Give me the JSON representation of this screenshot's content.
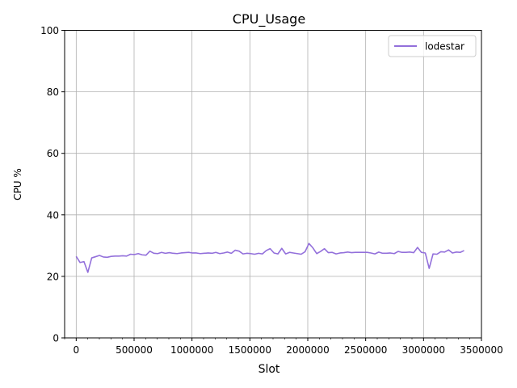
{
  "chart_data": {
    "type": "line",
    "title": "CPU_Usage",
    "xlabel": "Slot",
    "ylabel": "CPU %",
    "xlim": [
      -100000,
      3500000
    ],
    "ylim": [
      0,
      100
    ],
    "xticks": [
      0,
      500000,
      1000000,
      1500000,
      2000000,
      2500000,
      3000000,
      3500000
    ],
    "xtick_labels": [
      "0",
      "500000",
      "1000000",
      "1500000",
      "2000000",
      "2500000",
      "3000000",
      "3500000"
    ],
    "yticks": [
      0,
      20,
      40,
      60,
      80,
      100
    ],
    "ytick_labels": [
      "0",
      "20",
      "40",
      "60",
      "80",
      "100"
    ],
    "grid": true,
    "legend_position": "top-right",
    "series": [
      {
        "name": "lodestar",
        "color": "#9370db",
        "x": [
          0,
          33500,
          67000,
          100500,
          134000,
          167500,
          201000,
          234500,
          268000,
          301500,
          335000,
          368500,
          402000,
          435500,
          469000,
          502500,
          536000,
          569500,
          603000,
          636500,
          670000,
          703500,
          737000,
          770500,
          804000,
          837500,
          871000,
          904500,
          938000,
          971500,
          1005000,
          1038500,
          1072000,
          1105500,
          1139000,
          1172500,
          1206000,
          1239500,
          1273000,
          1306500,
          1340000,
          1373500,
          1407000,
          1440500,
          1474000,
          1507500,
          1541000,
          1574500,
          1608000,
          1641500,
          1675000,
          1708500,
          1742000,
          1775500,
          1809000,
          1842500,
          1876000,
          1909500,
          1943000,
          1976500,
          2010000,
          2043500,
          2077000,
          2110500,
          2144000,
          2177500,
          2211000,
          2244500,
          2278000,
          2311500,
          2345000,
          2378500,
          2412000,
          2445500,
          2479000,
          2512500,
          2546000,
          2579500,
          2613000,
          2646500,
          2680000,
          2713500,
          2747000,
          2780500,
          2814000,
          2847500,
          2881000,
          2914500,
          2948000,
          2981500,
          3015000,
          3048500,
          3082000,
          3115500,
          3149000,
          3182500,
          3216000,
          3249500,
          3283000,
          3316500,
          3350000
        ],
        "y": [
          26.5,
          24.5,
          24.8,
          21.3,
          26.0,
          26.4,
          26.8,
          26.3,
          26.2,
          26.5,
          26.6,
          26.6,
          26.7,
          26.6,
          27.2,
          27.1,
          27.4,
          27.0,
          26.9,
          28.2,
          27.5,
          27.4,
          27.8,
          27.5,
          27.7,
          27.5,
          27.4,
          27.6,
          27.7,
          27.8,
          27.6,
          27.6,
          27.4,
          27.5,
          27.6,
          27.5,
          27.8,
          27.4,
          27.6,
          27.9,
          27.5,
          28.5,
          28.2,
          27.3,
          27.5,
          27.4,
          27.2,
          27.5,
          27.3,
          28.4,
          29.0,
          27.6,
          27.3,
          29.1,
          27.3,
          27.8,
          27.6,
          27.4,
          27.2,
          28.0,
          30.7,
          29.3,
          27.4,
          28.1,
          29.0,
          27.7,
          27.8,
          27.3,
          27.6,
          27.7,
          27.9,
          27.7,
          27.8,
          27.8,
          27.8,
          27.8,
          27.6,
          27.3,
          27.9,
          27.5,
          27.5,
          27.6,
          27.4,
          28.1,
          27.8,
          27.8,
          27.9,
          27.7,
          29.4,
          27.8,
          27.6,
          22.6,
          27.3,
          27.2,
          28.0,
          27.9,
          28.6,
          27.6,
          27.9,
          27.8,
          28.4
        ]
      }
    ]
  }
}
